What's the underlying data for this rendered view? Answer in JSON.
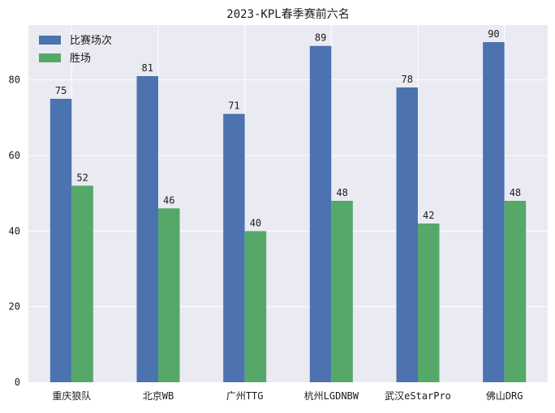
{
  "chart_data": {
    "type": "bar",
    "title": "2023-KPL春季赛前六名",
    "xlabel": "",
    "ylabel": "",
    "categories": [
      "重庆狼队",
      "北京WB",
      "广州TTG",
      "杭州LGDNBW",
      "武汉eStarPro",
      "佛山DRG"
    ],
    "series": [
      {
        "name": "比赛场次",
        "color": "#4c72b0",
        "values": [
          75,
          81,
          71,
          89,
          78,
          90
        ]
      },
      {
        "name": "胜场",
        "color": "#55a868",
        "values": [
          52,
          46,
          40,
          48,
          42,
          48
        ]
      }
    ],
    "ylim": [
      0,
      94.5
    ],
    "yticks": [
      0,
      20,
      40,
      60,
      80
    ],
    "grid": true,
    "legend": "top-left",
    "background": "#eaeaf2"
  }
}
